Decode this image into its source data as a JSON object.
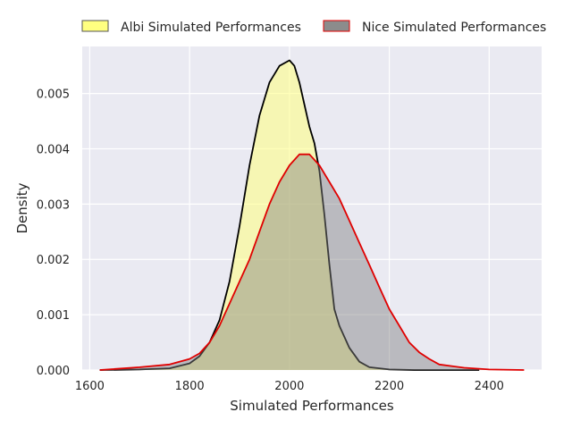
{
  "chart_data": {
    "type": "area",
    "xlabel": "Simulated Performances",
    "ylabel": "Density",
    "xlim": [
      1585,
      2505
    ],
    "ylim": [
      0,
      0.00585
    ],
    "xticks": [
      1600,
      1800,
      2000,
      2200,
      2400
    ],
    "yticks": [
      0.0,
      0.001,
      0.002,
      0.003,
      0.004,
      0.005
    ],
    "ytick_labels": [
      "0.000",
      "0.001",
      "0.002",
      "0.003",
      "0.004",
      "0.005"
    ],
    "grid": true,
    "legend_position": "top",
    "series": [
      {
        "name": "Albi Simulated Performances",
        "fill": "#ffff80",
        "stroke": "#000000",
        "fill_opacity": 0.55,
        "x": [
          1620,
          1700,
          1760,
          1800,
          1820,
          1840,
          1860,
          1880,
          1900,
          1920,
          1940,
          1960,
          1980,
          2000,
          2010,
          2020,
          2030,
          2040,
          2050,
          2060,
          2070,
          2080,
          2090,
          2100,
          2120,
          2140,
          2160,
          2200,
          2250,
          2300,
          2380
        ],
        "y": [
          0.0,
          1e-05,
          3e-05,
          0.00012,
          0.00025,
          0.0005,
          0.0009,
          0.0016,
          0.0026,
          0.0037,
          0.0046,
          0.0052,
          0.0055,
          0.0056,
          0.0055,
          0.0052,
          0.0048,
          0.0044,
          0.0041,
          0.0036,
          0.0028,
          0.0019,
          0.0011,
          0.0008,
          0.0004,
          0.00015,
          5e-05,
          1e-05,
          0.0,
          0.0,
          0.0
        ]
      },
      {
        "name": "Nice Simulated Performances",
        "fill": "#808080",
        "stroke": "#e00000",
        "fill_opacity": 0.45,
        "x": [
          1620,
          1700,
          1760,
          1800,
          1820,
          1840,
          1860,
          1880,
          1900,
          1920,
          1940,
          1960,
          1980,
          2000,
          2020,
          2040,
          2060,
          2080,
          2100,
          2120,
          2140,
          2160,
          2180,
          2200,
          2220,
          2240,
          2260,
          2280,
          2300,
          2350,
          2400,
          2470
        ],
        "y": [
          0.0,
          5e-05,
          0.0001,
          0.0002,
          0.0003,
          0.0005,
          0.0008,
          0.0012,
          0.0016,
          0.002,
          0.0025,
          0.003,
          0.0034,
          0.0037,
          0.0039,
          0.0039,
          0.0037,
          0.0034,
          0.0031,
          0.0027,
          0.0023,
          0.0019,
          0.0015,
          0.0011,
          0.0008,
          0.0005,
          0.00032,
          0.0002,
          0.0001,
          4e-05,
          1e-05,
          0.0
        ]
      }
    ]
  }
}
